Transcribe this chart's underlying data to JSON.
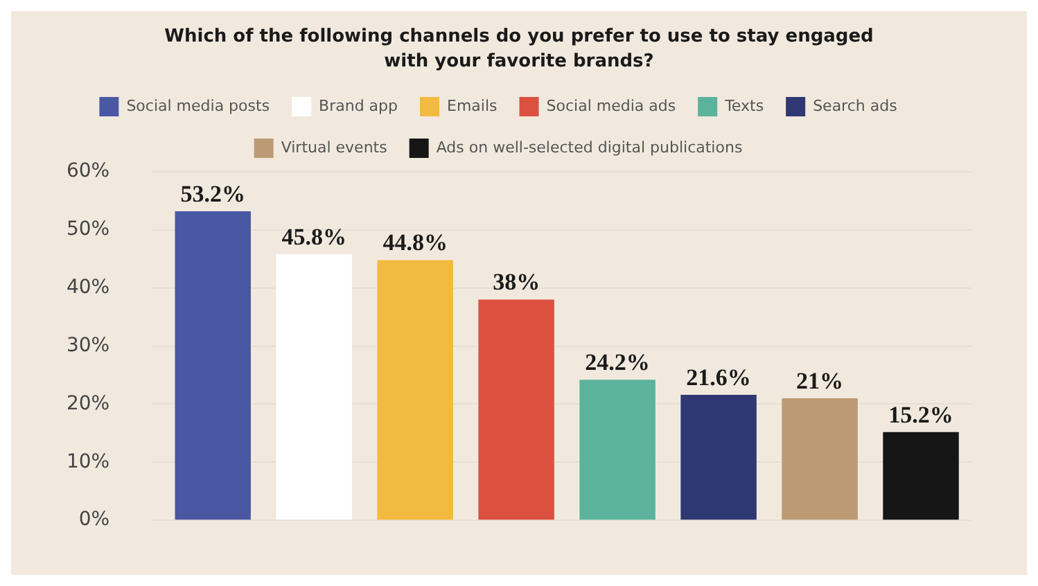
{
  "chart_data": {
    "type": "bar",
    "title": "Which of the following channels do you prefer to use to stay engaged with your favorite brands?",
    "categories": [
      null,
      null,
      null,
      null,
      null,
      null,
      null,
      null
    ],
    "series": [
      {
        "name": "Social media posts",
        "color": "#4a58a4",
        "values": [
          53.2,
          null,
          null,
          null,
          null,
          null,
          null,
          null
        ],
        "value_labels": [
          "53.2%",
          null,
          null,
          null,
          null,
          null,
          null,
          null
        ]
      },
      {
        "name": "Brand app",
        "color": "#ffffff",
        "values": [
          null,
          45.8,
          null,
          null,
          null,
          null,
          null,
          null
        ],
        "value_labels": [
          null,
          "45.8%",
          null,
          null,
          null,
          null,
          null,
          null
        ]
      },
      {
        "name": "Emails",
        "color": "#f2ba41",
        "values": [
          null,
          null,
          44.8,
          null,
          null,
          null,
          null,
          null
        ],
        "value_labels": [
          null,
          null,
          "44.8%",
          null,
          null,
          null,
          null,
          null
        ]
      },
      {
        "name": "Social media ads",
        "color": "#dc5040",
        "values": [
          null,
          null,
          null,
          38,
          null,
          null,
          null,
          null
        ],
        "value_labels": [
          null,
          null,
          null,
          "38%",
          null,
          null,
          null,
          null
        ]
      },
      {
        "name": "Texts",
        "color": "#5bb39b",
        "values": [
          null,
          null,
          null,
          null,
          24.2,
          null,
          null,
          null
        ],
        "value_labels": [
          null,
          null,
          null,
          null,
          "24.2%",
          null,
          null,
          null
        ]
      },
      {
        "name": "Search ads",
        "color": "#2f3872",
        "values": [
          null,
          null,
          null,
          null,
          null,
          21.6,
          null,
          null
        ],
        "value_labels": [
          null,
          null,
          null,
          null,
          null,
          "21.6%",
          null,
          null
        ]
      },
      {
        "name": "Virtual events",
        "color": "#bb9a74",
        "values": [
          null,
          null,
          null,
          null,
          null,
          null,
          21,
          null
        ],
        "value_labels": [
          null,
          null,
          null,
          null,
          null,
          null,
          "21%",
          null
        ]
      },
      {
        "name": "Ads on well-selected digital publications",
        "color": "#161616",
        "values": [
          null,
          null,
          null,
          null,
          null,
          null,
          null,
          15.2
        ],
        "value_labels": [
          null,
          null,
          null,
          null,
          null,
          null,
          null,
          "15.2%"
        ]
      }
    ],
    "ylim": [
      0,
      60
    ],
    "yticks": [
      {
        "value": 0,
        "label": "0%"
      },
      {
        "value": 10,
        "label": "10%"
      },
      {
        "value": 20,
        "label": "20%"
      },
      {
        "value": 30,
        "label": "30%"
      },
      {
        "value": 40,
        "label": "40%"
      },
      {
        "value": 50,
        "label": "50%"
      },
      {
        "value": 60,
        "label": "60%"
      }
    ],
    "grid": "y",
    "legend": "top",
    "tick_labels": "y"
  }
}
